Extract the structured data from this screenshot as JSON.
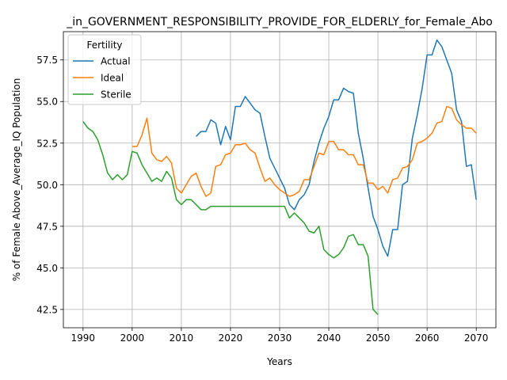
{
  "chart_data": {
    "type": "line",
    "title": "_in_GOVERNMENT_RESPONSIBILITY_PROVIDE_FOR_ELDERLY_for_Female_Abo",
    "xlabel": "Years",
    "ylabel": "% of Female Above_Average_IQ Population",
    "xlim": [
      1986,
      2074
    ],
    "ylim": [
      41.4,
      59.2
    ],
    "xticks": [
      1990,
      2000,
      2010,
      2020,
      2030,
      2040,
      2050,
      2060,
      2070
    ],
    "yticks": [
      42.5,
      45.0,
      47.5,
      50.0,
      52.5,
      55.0,
      57.5
    ],
    "ytick_labels": [
      "42.5",
      "45.0",
      "47.5",
      "50.0",
      "52.5",
      "55.0",
      "57.5"
    ],
    "grid": true,
    "legend": {
      "title": "Fertility",
      "position": "upper-left"
    },
    "series": [
      {
        "name": "Actual",
        "color": "#1f77b4",
        "x": [
          2013,
          2014,
          2015,
          2016,
          2017,
          2018,
          2019,
          2020,
          2021,
          2022,
          2023,
          2024,
          2025,
          2026,
          2027,
          2028,
          2029,
          2030,
          2031,
          2032,
          2033,
          2034,
          2035,
          2036,
          2037,
          2038,
          2039,
          2040,
          2041,
          2042,
          2043,
          2044,
          2045,
          2046,
          2047,
          2048,
          2049,
          2050,
          2051,
          2052,
          2053,
          2054,
          2055,
          2056,
          2057,
          2058,
          2059,
          2060,
          2061,
          2062,
          2063,
          2064,
          2065,
          2066,
          2067,
          2068,
          2069,
          2070
        ],
        "y": [
          52.9,
          53.2,
          53.2,
          53.9,
          53.7,
          52.4,
          53.5,
          52.7,
          54.7,
          54.7,
          55.3,
          54.9,
          54.5,
          54.3,
          52.9,
          51.6,
          51.0,
          50.4,
          49.8,
          48.8,
          48.5,
          49.1,
          49.4,
          50.0,
          51.4,
          52.5,
          53.4,
          54.1,
          55.1,
          55.1,
          55.8,
          55.6,
          55.5,
          53.1,
          51.6,
          49.8,
          48.1,
          47.3,
          46.3,
          45.7,
          47.3,
          47.3,
          50.0,
          50.2,
          52.8,
          54.2,
          55.8,
          57.8,
          57.8,
          58.7,
          58.3,
          57.5,
          56.7,
          54.5,
          53.8,
          51.1,
          51.2,
          49.1
        ]
      },
      {
        "name": "Ideal",
        "color": "#ff7f0e",
        "x": [
          2000,
          2001,
          2002,
          2003,
          2004,
          2005,
          2006,
          2007,
          2008,
          2009,
          2010,
          2011,
          2012,
          2013,
          2014,
          2015,
          2016,
          2017,
          2018,
          2019,
          2020,
          2021,
          2022,
          2023,
          2024,
          2025,
          2026,
          2027,
          2028,
          2029,
          2030,
          2031,
          2032,
          2033,
          2034,
          2035,
          2036,
          2037,
          2038,
          2039,
          2040,
          2041,
          2042,
          2043,
          2044,
          2045,
          2046,
          2047,
          2048,
          2049,
          2050,
          2051,
          2052,
          2053,
          2054,
          2055,
          2056,
          2057,
          2058,
          2059,
          2060,
          2061,
          2062,
          2063,
          2064,
          2065,
          2066,
          2067,
          2068,
          2069,
          2070
        ],
        "y": [
          52.3,
          52.3,
          53.0,
          54.0,
          51.9,
          51.5,
          51.4,
          51.7,
          51.3,
          49.8,
          49.5,
          50.0,
          50.5,
          50.7,
          49.9,
          49.3,
          49.5,
          51.1,
          51.2,
          51.8,
          51.9,
          52.4,
          52.4,
          52.5,
          52.1,
          51.9,
          51.0,
          50.2,
          50.4,
          50.0,
          49.7,
          49.5,
          49.3,
          49.4,
          49.6,
          50.3,
          50.3,
          51.1,
          51.9,
          51.8,
          52.6,
          52.6,
          52.1,
          52.1,
          51.8,
          51.8,
          51.2,
          51.2,
          50.1,
          50.1,
          49.7,
          49.9,
          49.5,
          50.3,
          50.4,
          51.0,
          51.1,
          51.5,
          52.5,
          52.6,
          52.8,
          53.1,
          53.7,
          53.8,
          54.7,
          54.6,
          53.9,
          53.6,
          53.4,
          53.4,
          53.1
        ]
      },
      {
        "name": "Sterile",
        "color": "#2ca02c",
        "x": [
          1990,
          1991,
          1992,
          1993,
          1994,
          1995,
          1996,
          1997,
          1998,
          1999,
          2000,
          2001,
          2002,
          2003,
          2004,
          2005,
          2006,
          2007,
          2008,
          2009,
          2010,
          2011,
          2012,
          2013,
          2014,
          2015,
          2016,
          2017,
          2018,
          2019,
          2020,
          2021,
          2022,
          2023,
          2024,
          2025,
          2026,
          2027,
          2028,
          2029,
          2030,
          2031,
          2032,
          2033,
          2034,
          2035,
          2036,
          2037,
          2038,
          2039,
          2040,
          2041,
          2042,
          2043,
          2044,
          2045,
          2046,
          2047,
          2048,
          2049,
          2050
        ],
        "y": [
          53.8,
          53.4,
          53.2,
          52.7,
          51.8,
          50.7,
          50.3,
          50.6,
          50.3,
          50.6,
          52.0,
          51.9,
          51.2,
          50.7,
          50.2,
          50.4,
          50.2,
          50.8,
          50.4,
          49.1,
          48.8,
          49.1,
          49.1,
          48.8,
          48.5,
          48.5,
          48.7,
          48.7,
          48.7,
          48.7,
          48.7,
          48.7,
          48.7,
          48.7,
          48.7,
          48.7,
          48.7,
          48.7,
          48.7,
          48.7,
          48.7,
          48.7,
          48.0,
          48.3,
          48.0,
          47.7,
          47.2,
          47.1,
          47.5,
          46.1,
          45.8,
          45.6,
          45.8,
          46.2,
          46.9,
          47.0,
          46.4,
          46.4,
          45.7,
          42.5,
          42.2
        ]
      }
    ]
  }
}
